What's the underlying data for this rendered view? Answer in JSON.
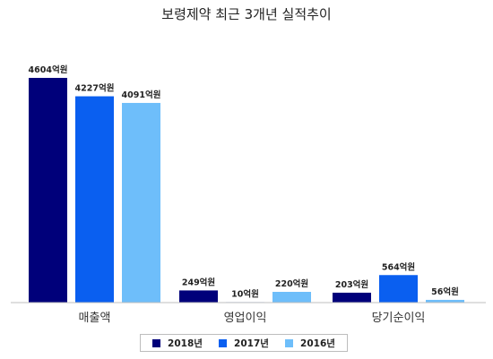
{
  "chart_data": {
    "type": "bar",
    "title": "보령제약 최근 3개년 실적추이",
    "categories": [
      "매출액",
      "영업이익",
      "당기순이익"
    ],
    "series": [
      {
        "name": "2018년",
        "color": "#00007a",
        "values": [
          4604,
          249,
          203
        ],
        "labels": [
          "4604억원",
          "249억원",
          "203억원"
        ]
      },
      {
        "name": "2017년",
        "color": "#0a5ff0",
        "values": [
          4227,
          10,
          564
        ],
        "labels": [
          "4227억원",
          "10억원",
          "564억원"
        ]
      },
      {
        "name": "2016년",
        "color": "#6ebefa",
        "values": [
          4091,
          220,
          56
        ],
        "labels": [
          "4091억원",
          "220억원",
          "56억원"
        ]
      }
    ],
    "ylim": [
      0,
      4604
    ],
    "grid": false,
    "legend_position": "bottom"
  }
}
